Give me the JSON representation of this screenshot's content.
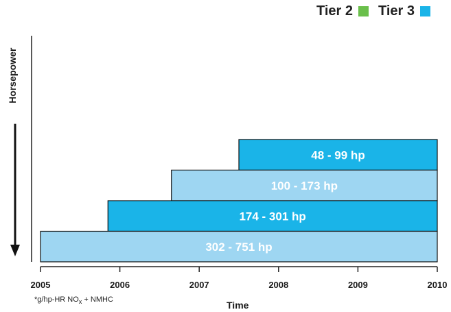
{
  "legend": {
    "items": [
      {
        "label": "Tier 2",
        "color": "#6abf4b"
      },
      {
        "label": "Tier 3",
        "color": "#1ab4e8"
      }
    ]
  },
  "footnote": {
    "prefix": "*g/hp-HR NO",
    "subscript": "x",
    "suffix": " + NMHC"
  },
  "chart_data": {
    "type": "bar",
    "orientation": "horizontal",
    "xlabel": "Time",
    "ylabel": "Horsepower",
    "xlim": [
      2005,
      2010
    ],
    "xticks": [
      "2005",
      "2006",
      "2007",
      "2008",
      "2009",
      "2010"
    ],
    "grid": false,
    "legend_position": "top-right",
    "bars": [
      {
        "label": "48 - 99 hp",
        "start": 2007.5,
        "end": 2010,
        "color": "#1ab4e8"
      },
      {
        "label": "100 - 173 hp",
        "start": 2006.65,
        "end": 2010,
        "color": "#9ed6f2"
      },
      {
        "label": "174 - 301 hp",
        "start": 2005.85,
        "end": 2010,
        "color": "#1ab4e8"
      },
      {
        "label": "302 - 751 hp",
        "start": 2005.0,
        "end": 2010,
        "color": "#9ed6f2"
      }
    ]
  }
}
